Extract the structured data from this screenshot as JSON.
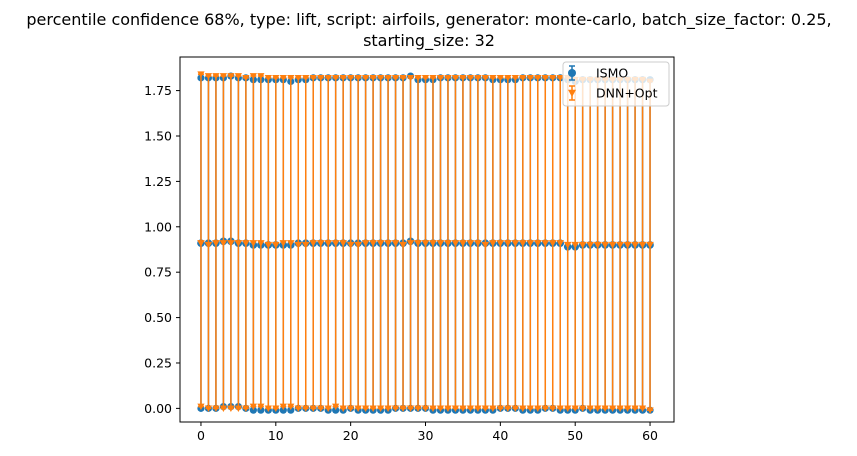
{
  "chart_data": {
    "type": "errorbar",
    "title_line1": "percentile confidence 68%, type: lift, script: airfoils, generator: monte-carlo, batch_size_factor: 0.25,",
    "title_line2": "starting_size: 32",
    "xlabel": "",
    "ylabel": "",
    "xlim": [
      -2.8,
      63.2
    ],
    "ylim": [
      -0.075,
      1.935
    ],
    "xticks": [
      0,
      10,
      20,
      30,
      40,
      50,
      60
    ],
    "xtick_labels": [
      "0",
      "10",
      "20",
      "30",
      "40",
      "50",
      "60"
    ],
    "yticks": [
      0.0,
      0.25,
      0.5,
      0.75,
      1.0,
      1.25,
      1.5,
      1.75
    ],
    "ytick_labels": [
      "0.00",
      "0.25",
      "0.50",
      "0.75",
      "1.00",
      "1.25",
      "1.50",
      "1.75"
    ],
    "grid": false,
    "legend_position": "top-right",
    "x": [
      0,
      1,
      2,
      3,
      4,
      5,
      6,
      7,
      8,
      9,
      10,
      11,
      12,
      13,
      14,
      15,
      16,
      17,
      18,
      19,
      20,
      21,
      22,
      23,
      24,
      25,
      26,
      27,
      28,
      29,
      30,
      31,
      32,
      33,
      34,
      35,
      36,
      37,
      38,
      39,
      40,
      41,
      42,
      43,
      44,
      45,
      46,
      47,
      48,
      49,
      50,
      51,
      52,
      53,
      54,
      55,
      56,
      57,
      58,
      59,
      60
    ],
    "series": [
      {
        "name": "ISMO",
        "color": "#1f77b4",
        "marker": "circle",
        "mean": [
          0.91,
          0.91,
          0.91,
          0.92,
          0.92,
          0.91,
          0.91,
          0.9,
          0.9,
          0.9,
          0.9,
          0.9,
          0.9,
          0.91,
          0.91,
          0.91,
          0.91,
          0.91,
          0.91,
          0.91,
          0.91,
          0.91,
          0.91,
          0.91,
          0.91,
          0.91,
          0.91,
          0.91,
          0.92,
          0.91,
          0.91,
          0.91,
          0.91,
          0.91,
          0.91,
          0.91,
          0.91,
          0.91,
          0.91,
          0.91,
          0.91,
          0.91,
          0.91,
          0.91,
          0.91,
          0.91,
          0.91,
          0.91,
          0.91,
          0.89,
          0.89,
          0.9,
          0.9,
          0.9,
          0.9,
          0.9,
          0.9,
          0.9,
          0.9,
          0.9,
          0.9
        ],
        "lower": [
          0.0,
          0.0,
          0.0,
          0.01,
          0.01,
          0.01,
          0.0,
          -0.01,
          -0.01,
          -0.01,
          -0.01,
          -0.01,
          -0.01,
          0.0,
          0.0,
          0.0,
          0.0,
          -0.01,
          -0.01,
          -0.01,
          0.0,
          -0.01,
          -0.01,
          -0.01,
          -0.01,
          -0.01,
          0.0,
          0.0,
          0.0,
          0.0,
          0.0,
          -0.01,
          -0.01,
          -0.01,
          -0.01,
          -0.01,
          -0.01,
          -0.01,
          -0.01,
          -0.01,
          0.0,
          0.0,
          0.0,
          -0.01,
          -0.01,
          -0.01,
          0.0,
          0.0,
          -0.01,
          -0.01,
          -0.01,
          0.0,
          -0.01,
          -0.01,
          -0.01,
          -0.01,
          -0.01,
          -0.01,
          -0.01,
          -0.01,
          -0.01
        ],
        "upper": [
          1.82,
          1.82,
          1.82,
          1.82,
          1.83,
          1.82,
          1.82,
          1.81,
          1.81,
          1.81,
          1.81,
          1.81,
          1.8,
          1.81,
          1.81,
          1.82,
          1.82,
          1.82,
          1.82,
          1.82,
          1.82,
          1.82,
          1.82,
          1.82,
          1.82,
          1.82,
          1.82,
          1.82,
          1.83,
          1.81,
          1.81,
          1.81,
          1.82,
          1.82,
          1.82,
          1.82,
          1.82,
          1.82,
          1.82,
          1.81,
          1.81,
          1.81,
          1.81,
          1.82,
          1.82,
          1.82,
          1.82,
          1.82,
          1.82,
          1.81,
          1.8,
          1.81,
          1.81,
          1.81,
          1.81,
          1.81,
          1.81,
          1.81,
          1.81,
          1.81,
          1.81
        ]
      },
      {
        "name": "DNN+Opt",
        "color": "#ff7f0e",
        "marker": "triangle-down",
        "mean": [
          0.91,
          0.9,
          0.91,
          0.91,
          0.91,
          0.91,
          0.91,
          0.91,
          0.91,
          0.9,
          0.9,
          0.91,
          0.91,
          0.9,
          0.9,
          0.91,
          0.91,
          0.91,
          0.91,
          0.91,
          0.9,
          0.9,
          0.91,
          0.91,
          0.91,
          0.91,
          0.91,
          0.9,
          0.91,
          0.91,
          0.91,
          0.91,
          0.91,
          0.91,
          0.91,
          0.91,
          0.91,
          0.91,
          0.9,
          0.91,
          0.91,
          0.91,
          0.91,
          0.91,
          0.91,
          0.91,
          0.91,
          0.91,
          0.91,
          0.9,
          0.9,
          0.9,
          0.9,
          0.9,
          0.9,
          0.9,
          0.9,
          0.9,
          0.9,
          0.9,
          0.9
        ],
        "lower": [
          0.01,
          0.0,
          0.0,
          0.0,
          0.0,
          0.0,
          0.0,
          0.01,
          0.01,
          0.0,
          0.0,
          0.01,
          0.01,
          0.0,
          0.0,
          0.0,
          0.0,
          0.0,
          0.01,
          0.0,
          0.0,
          0.0,
          0.0,
          0.0,
          0.0,
          0.0,
          0.0,
          0.0,
          0.0,
          0.0,
          0.0,
          0.0,
          0.0,
          0.0,
          0.0,
          0.0,
          0.0,
          0.0,
          0.0,
          0.0,
          0.0,
          0.0,
          0.0,
          0.0,
          0.0,
          0.0,
          0.0,
          0.0,
          0.0,
          0.0,
          0.0,
          0.0,
          0.0,
          0.0,
          0.0,
          0.0,
          0.0,
          0.0,
          0.0,
          0.0,
          -0.01
        ],
        "upper": [
          1.84,
          1.83,
          1.83,
          1.83,
          1.83,
          1.83,
          1.82,
          1.83,
          1.83,
          1.82,
          1.82,
          1.82,
          1.82,
          1.82,
          1.82,
          1.82,
          1.82,
          1.82,
          1.82,
          1.82,
          1.82,
          1.82,
          1.82,
          1.82,
          1.82,
          1.82,
          1.82,
          1.82,
          1.82,
          1.82,
          1.82,
          1.82,
          1.82,
          1.82,
          1.82,
          1.82,
          1.82,
          1.82,
          1.82,
          1.82,
          1.82,
          1.82,
          1.82,
          1.82,
          1.82,
          1.82,
          1.82,
          1.82,
          1.82,
          1.82,
          1.81,
          1.81,
          1.81,
          1.81,
          1.81,
          1.81,
          1.81,
          1.81,
          1.81,
          1.81,
          1.8
        ]
      }
    ]
  }
}
